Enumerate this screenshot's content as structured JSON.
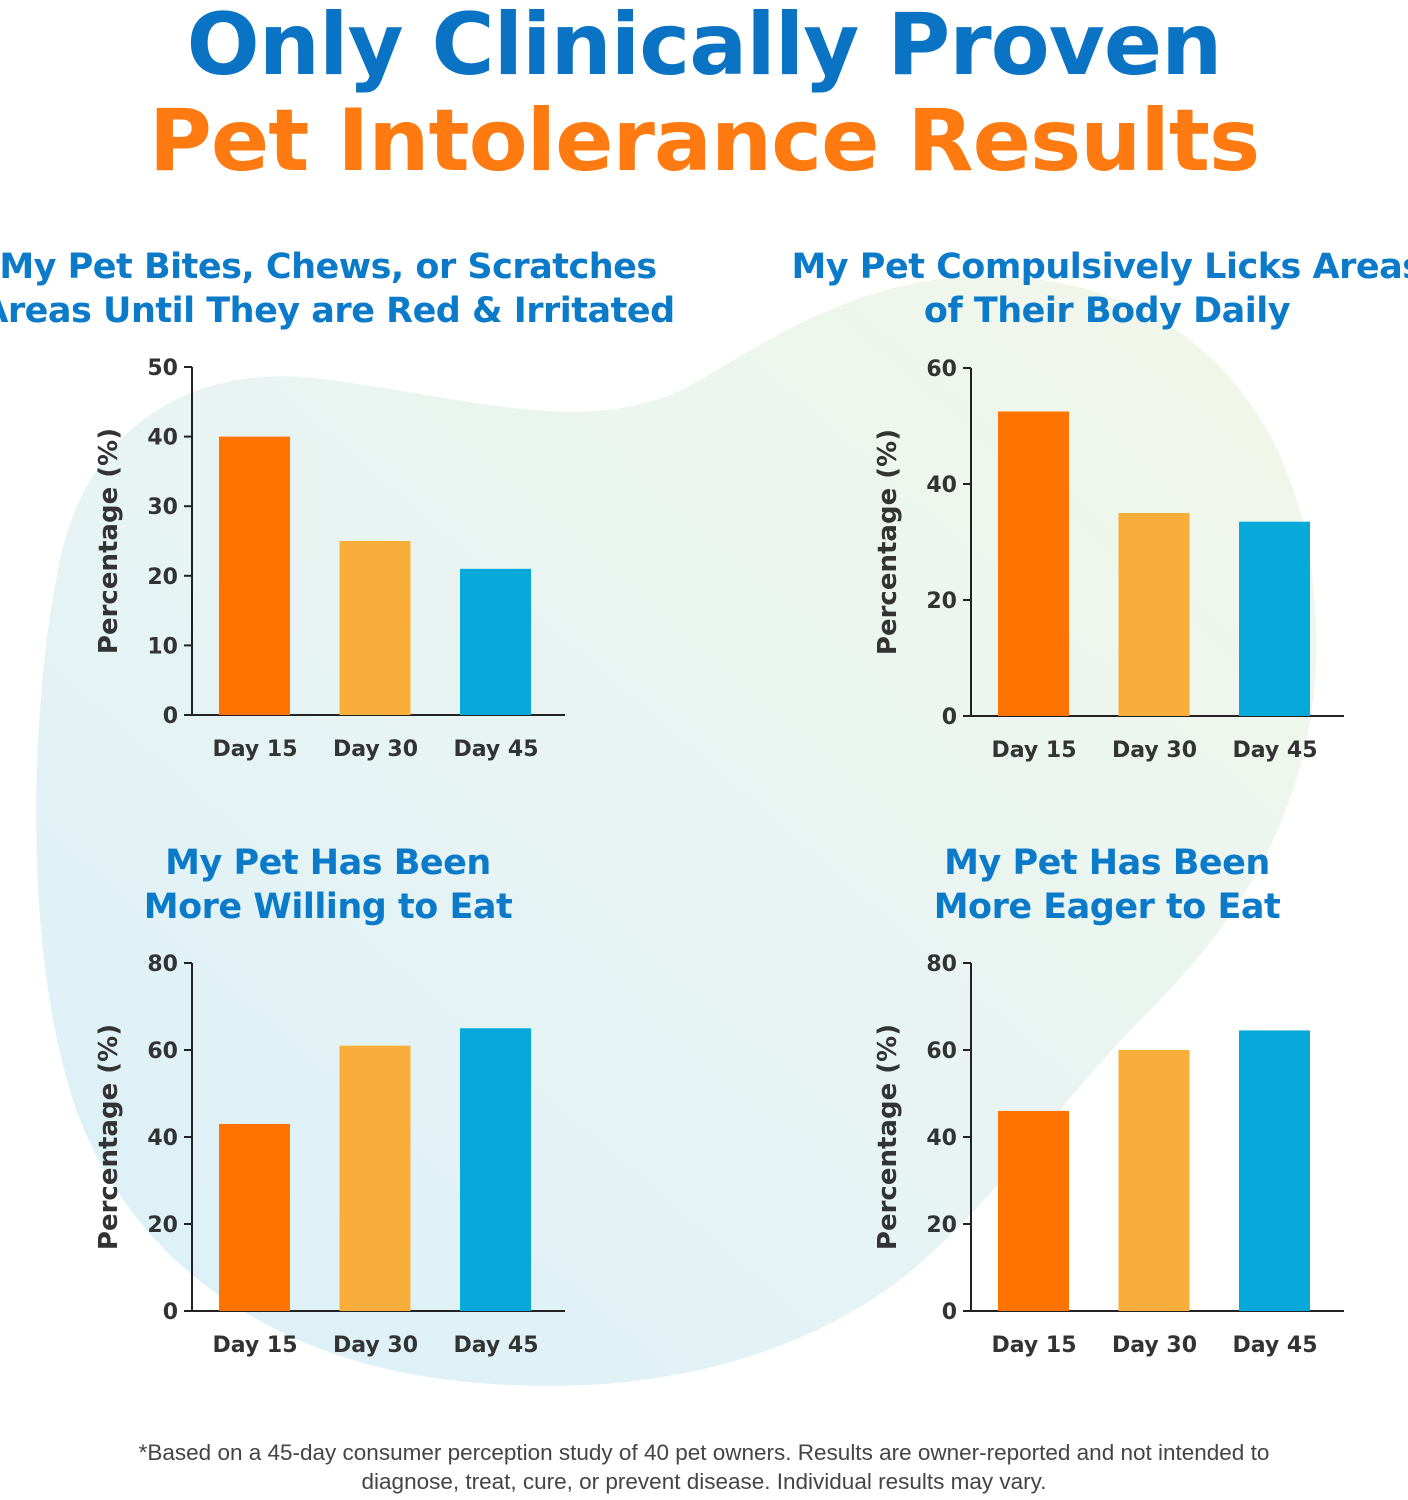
{
  "header": {
    "title_line1": "Only Clinically Proven",
    "title_line2": "Pet Intolerance Results"
  },
  "colors": {
    "title_blue": "#0A73C4",
    "title_orange": "#FF7A10",
    "bar_day15": "#FF7300",
    "bar_day30": "#F9AE3C",
    "bar_day45": "#06A9DA"
  },
  "chart_data": [
    {
      "type": "bar",
      "title": "My Pet Bites, Chews, or Scratches Areas Until They are Red & Irritated",
      "ylabel": "Percentage (%)",
      "xlabel": "",
      "categories": [
        "Day 15",
        "Day 30",
        "Day 45"
      ],
      "values": [
        40,
        25,
        21
      ],
      "ylim": [
        0,
        50
      ],
      "yticks": [
        0,
        10,
        20,
        30,
        40,
        50
      ],
      "grid": false
    },
    {
      "type": "bar",
      "title": "My Pet Compulsively Licks Areas of Their Body Daily",
      "ylabel": "Percentage (%)",
      "xlabel": "",
      "categories": [
        "Day 15",
        "Day 30",
        "Day 45"
      ],
      "values": [
        52.5,
        35,
        33.5
      ],
      "ylim": [
        0,
        60
      ],
      "yticks": [
        0,
        20,
        40,
        60
      ],
      "grid": false
    },
    {
      "type": "bar",
      "title": "My Pet Has Been More Willing to Eat",
      "ylabel": "Percentage (%)",
      "xlabel": "",
      "categories": [
        "Day 15",
        "Day 30",
        "Day 45"
      ],
      "values": [
        43,
        61,
        65
      ],
      "ylim": [
        0,
        80
      ],
      "yticks": [
        0,
        20,
        40,
        60,
        80
      ],
      "grid": false
    },
    {
      "type": "bar",
      "title": "My Pet Has Been More Eager to Eat",
      "ylabel": "Percentage (%)",
      "xlabel": "",
      "categories": [
        "Day 15",
        "Day 30",
        "Day 45"
      ],
      "values": [
        46,
        60,
        64.5
      ],
      "ylim": [
        0,
        80
      ],
      "yticks": [
        0,
        20,
        40,
        60,
        80
      ],
      "grid": false
    }
  ],
  "titles_lines": [
    [
      "My Pet Bites, Chews, or Scratches",
      "Areas Until They are Red & Irritated"
    ],
    [
      "My Pet Compulsively Licks Areas",
      "of Their Body Daily"
    ],
    [
      "My Pet Has Been",
      "More Willing to Eat"
    ],
    [
      "My Pet Has Been",
      "More Eager to Eat"
    ]
  ],
  "footnote": {
    "line1": "*Based on a 45-day consumer perception study of 40 pet owners. Results are owner-reported and not intended to",
    "line2": "diagnose, treat, cure, or prevent disease. Individual results may vary."
  }
}
